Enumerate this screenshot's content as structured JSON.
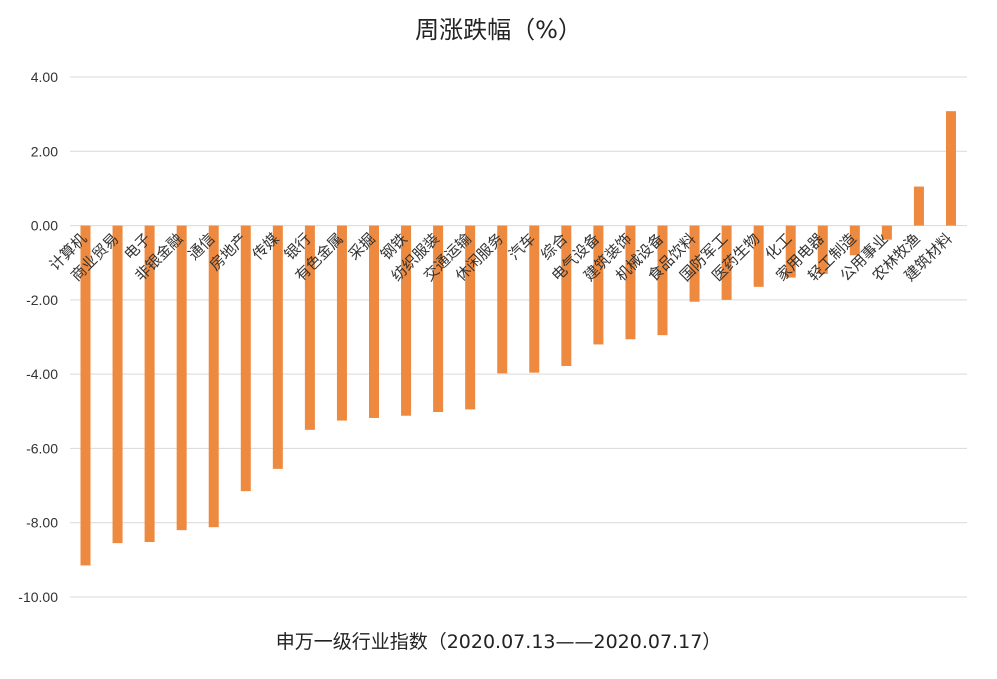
{
  "chart_data": {
    "type": "bar",
    "title": "周涨跌幅（%）",
    "xlabel": "申万一级行业指数（2020.07.13——2020.07.17）",
    "ylabel": "",
    "ylim": [
      -10,
      4
    ],
    "yticks": [
      "4.00",
      "2.00",
      "0.00",
      "-2.00",
      "-4.00",
      "-6.00",
      "-8.00",
      "-10.00"
    ],
    "grid": true,
    "bar_color": "#ED8A3F",
    "categories": [
      "计算机",
      "商业贸易",
      "电子",
      "非银金融",
      "通信",
      "房地产",
      "传媒",
      "银行",
      "有色金属",
      "采掘",
      "钢铁",
      "纺织服装",
      "交通运输",
      "休闲服务",
      "汽车",
      "综合",
      "电气设备",
      "建筑装饰",
      "机械设备",
      "食品饮料",
      "国防军工",
      "医药生物",
      "化工",
      "家用电器",
      "轻工制造",
      "公用事业",
      "农林牧渔",
      "建筑材料"
    ],
    "values": [
      -9.15,
      -8.55,
      -8.52,
      -8.2,
      -8.12,
      -7.15,
      -6.55,
      -5.5,
      -5.25,
      -5.18,
      -5.12,
      -5.02,
      -4.95,
      -3.98,
      -3.96,
      -3.78,
      -3.2,
      -3.06,
      -2.95,
      -2.05,
      -2.0,
      -1.65,
      -1.4,
      -1.3,
      -0.8,
      -0.38,
      1.05,
      3.08
    ]
  }
}
